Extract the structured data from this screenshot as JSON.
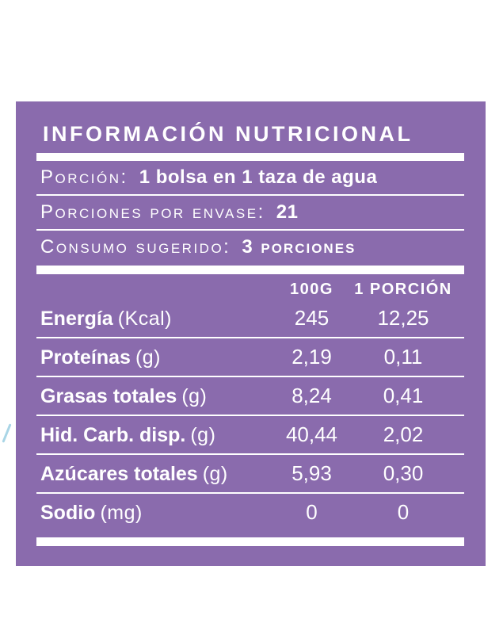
{
  "page": {
    "background_color": "#ffffff"
  },
  "panel": {
    "title": "INFORMACIÓN NUTRICIONAL",
    "colors": {
      "background": "#8a6bad",
      "text": "#ffffff",
      "divider": "#ffffff",
      "accent_mark": "#a9d5e6"
    },
    "serving_info": [
      {
        "label": "Porción:",
        "value": "1 bolsa en 1 taza de agua"
      },
      {
        "label": "Porciones por envase:",
        "value": "21"
      },
      {
        "label": "Consumo sugerido:",
        "value": "3 porciones"
      }
    ],
    "table": {
      "columns": [
        "100G",
        "1 PORCIÓN"
      ],
      "rows": [
        {
          "name": "Energía",
          "unit": "(Kcal)",
          "per_100g": "245",
          "per_portion": "12,25"
        },
        {
          "name": "Proteínas",
          "unit": "(g)",
          "per_100g": "2,19",
          "per_portion": "0,11"
        },
        {
          "name": "Grasas totales",
          "unit": "(g)",
          "per_100g": "8,24",
          "per_portion": "0,41"
        },
        {
          "name": "Hid. Carb. disp.",
          "unit": "(g)",
          "per_100g": "40,44",
          "per_portion": "2,02"
        },
        {
          "name": "Azúcares totales",
          "unit": "(g)",
          "per_100g": "5,93",
          "per_portion": "0,30"
        },
        {
          "name": "Sodio",
          "unit": "(mg)",
          "per_100g": "0",
          "per_portion": "0"
        }
      ]
    }
  }
}
